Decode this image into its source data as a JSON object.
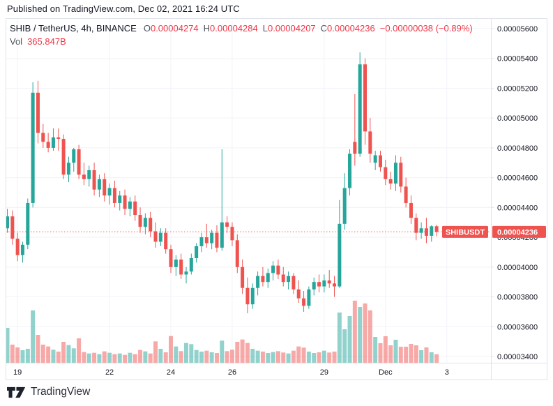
{
  "published_bar": {
    "text": "Published on TradingView.com, Dec 02, 2021 16:24 UTC"
  },
  "legend": {
    "symbol_title": "SHIB / TetherUS, 4h, BINANCE",
    "ohlc": [
      {
        "label": "O",
        "value": "0.00004274"
      },
      {
        "label": "H",
        "value": "0.00004284"
      },
      {
        "label": "L",
        "value": "0.00004207"
      },
      {
        "label": "C",
        "value": "0.00004236"
      }
    ],
    "change": "−0.00000038 (−0.89%)",
    "vol_label": "Vol",
    "vol_value": "365.847B"
  },
  "price_labels": {
    "symbol_badge": "SHIBUSDT",
    "price_badge": "0.00004236"
  },
  "footer": {
    "brand": "TradingView"
  },
  "colors": {
    "up": "#26a69a",
    "down": "#ef5350",
    "legend_value_red": "#f23645",
    "grid": "#f0f3fa",
    "border": "#e0e3eb",
    "axis_text": "#131722",
    "badge_text": "#ffffff"
  },
  "chart_data": {
    "type": "candlestick",
    "symbol": "SHIB/TetherUS",
    "interval": "4h",
    "exchange": "BINANCE",
    "volume_overlay": true,
    "price_unit": 1e-08,
    "last_price": 4236,
    "ylim": [
      3330,
      5670
    ],
    "y_axis": {
      "ticks": [
        3400,
        3600,
        3800,
        4000,
        4200,
        4400,
        4600,
        4800,
        5000,
        5200,
        5400,
        5600
      ],
      "labels": [
        "0.00003400",
        "0.00003600",
        "0.00003800",
        "0.00004000",
        "0.00004200",
        "0.00004400",
        "0.00004600",
        "0.00004800",
        "0.00005000",
        "0.00005200",
        "0.00005400",
        "0.00005600"
      ]
    },
    "x_axis": {
      "ticks": [
        {
          "index": 2,
          "label": "19"
        },
        {
          "index": 20,
          "label": "22"
        },
        {
          "index": 32,
          "label": "24"
        },
        {
          "index": 44,
          "label": "26"
        },
        {
          "index": 62,
          "label": "29"
        },
        {
          "index": 74,
          "label": "Dec"
        },
        {
          "index": 86,
          "label": "3"
        }
      ]
    },
    "candles_ohlc": [
      [
        4260,
        4390,
        4230,
        4340
      ],
      [
        4340,
        4380,
        4150,
        4190
      ],
      [
        4190,
        4230,
        4040,
        4080
      ],
      [
        4080,
        4170,
        4030,
        4150
      ],
      [
        4150,
        4460,
        4120,
        4430
      ],
      [
        4430,
        5240,
        4400,
        5170
      ],
      [
        5170,
        5250,
        4830,
        4900
      ],
      [
        4900,
        4960,
        4800,
        4840
      ],
      [
        4840,
        4900,
        4770,
        4800
      ],
      [
        4800,
        4930,
        4780,
        4870
      ],
      [
        4870,
        4930,
        4780,
        4860
      ],
      [
        4860,
        4890,
        4590,
        4620
      ],
      [
        4620,
        4740,
        4570,
        4700
      ],
      [
        4700,
        4800,
        4640,
        4790
      ],
      [
        4790,
        4820,
        4590,
        4620
      ],
      [
        4620,
        4700,
        4550,
        4590
      ],
      [
        4590,
        4680,
        4540,
        4650
      ],
      [
        4650,
        4700,
        4480,
        4520
      ],
      [
        4520,
        4620,
        4470,
        4590
      ],
      [
        4590,
        4630,
        4440,
        4480
      ],
      [
        4480,
        4560,
        4420,
        4530
      ],
      [
        4530,
        4580,
        4400,
        4430
      ],
      [
        4430,
        4510,
        4380,
        4480
      ],
      [
        4480,
        4520,
        4350,
        4390
      ],
      [
        4390,
        4470,
        4340,
        4440
      ],
      [
        4440,
        4480,
        4310,
        4350
      ],
      [
        4350,
        4400,
        4230,
        4270
      ],
      [
        4270,
        4360,
        4220,
        4330
      ],
      [
        4330,
        4370,
        4200,
        4240
      ],
      [
        4240,
        4300,
        4130,
        4170
      ],
      [
        4170,
        4260,
        4140,
        4230
      ],
      [
        4230,
        4260,
        4090,
        4120
      ],
      [
        4120,
        4150,
        3960,
        4000
      ],
      [
        4000,
        4080,
        3940,
        4050
      ],
      [
        4050,
        4090,
        3920,
        3950
      ],
      [
        3950,
        4000,
        3890,
        3970
      ],
      [
        3970,
        4090,
        3950,
        4060
      ],
      [
        4060,
        4160,
        4030,
        4140
      ],
      [
        4140,
        4230,
        4100,
        4200
      ],
      [
        4200,
        4290,
        4130,
        4160
      ],
      [
        4160,
        4250,
        4120,
        4230
      ],
      [
        4230,
        4280,
        4100,
        4130
      ],
      [
        4130,
        4790,
        4110,
        4300
      ],
      [
        4300,
        4340,
        4230,
        4270
      ],
      [
        4270,
        4300,
        4140,
        4180
      ],
      [
        4180,
        4220,
        3960,
        4000
      ],
      [
        4000,
        4050,
        3820,
        3860
      ],
      [
        3860,
        3930,
        3690,
        3750
      ],
      [
        3750,
        3890,
        3720,
        3860
      ],
      [
        3860,
        3970,
        3810,
        3940
      ],
      [
        3940,
        4000,
        3870,
        3900
      ],
      [
        3900,
        3990,
        3860,
        3960
      ],
      [
        3960,
        4040,
        3910,
        4010
      ],
      [
        4010,
        4050,
        3920,
        3950
      ],
      [
        3950,
        4000,
        3870,
        3900
      ],
      [
        3900,
        3970,
        3850,
        3940
      ],
      [
        3940,
        3960,
        3820,
        3850
      ],
      [
        3850,
        3910,
        3760,
        3790
      ],
      [
        3790,
        3840,
        3700,
        3740
      ],
      [
        3740,
        3870,
        3720,
        3850
      ],
      [
        3850,
        3930,
        3810,
        3900
      ],
      [
        3900,
        3950,
        3830,
        3870
      ],
      [
        3870,
        3950,
        3830,
        3910
      ],
      [
        3910,
        3980,
        3860,
        3890
      ],
      [
        3890,
        3940,
        3800,
        3870
      ],
      [
        3870,
        4450,
        3860,
        4290
      ],
      [
        4290,
        4630,
        4250,
        4530
      ],
      [
        4530,
        4790,
        4480,
        4760
      ],
      [
        4840,
        5160,
        4680,
        4760
      ],
      [
        4760,
        5440,
        4740,
        5360
      ],
      [
        5360,
        5400,
        4820,
        4910
      ],
      [
        4910,
        5000,
        4700,
        4760
      ],
      [
        4700,
        4780,
        4650,
        4750
      ],
      [
        4750,
        4780,
        4640,
        4670
      ],
      [
        4670,
        4720,
        4550,
        4590
      ],
      [
        4590,
        4640,
        4520,
        4560
      ],
      [
        4560,
        4750,
        4510,
        4700
      ],
      [
        4700,
        4740,
        4500,
        4540
      ],
      [
        4540,
        4600,
        4400,
        4430
      ],
      [
        4430,
        4480,
        4290,
        4330
      ],
      [
        4330,
        4360,
        4180,
        4230
      ],
      [
        4230,
        4300,
        4190,
        4260
      ],
      [
        4260,
        4330,
        4160,
        4210
      ],
      [
        4210,
        4280,
        4170,
        4274
      ],
      [
        4274,
        4284,
        4207,
        4236
      ]
    ],
    "volumes_b": [
      1500,
      780,
      660,
      540,
      600,
      2250,
      1200,
      780,
      700,
      560,
      480,
      900,
      760,
      620,
      1050,
      460,
      400,
      430,
      370,
      490,
      430,
      370,
      400,
      340,
      430,
      370,
      550,
      490,
      400,
      920,
      600,
      450,
      1150,
      700,
      500,
      850,
      800,
      550,
      480,
      520,
      450,
      420,
      950,
      500,
      560,
      900,
      1000,
      850,
      600,
      520,
      480,
      420,
      460,
      500,
      440,
      400,
      520,
      700,
      650,
      480,
      420,
      450,
      520,
      440,
      480,
      2160,
      1440,
      2010,
      2670,
      2400,
      2550,
      2250,
      1110,
      840,
      1140,
      750,
      990,
      690,
      690,
      810,
      750,
      540,
      660,
      450,
      365.847
    ]
  }
}
